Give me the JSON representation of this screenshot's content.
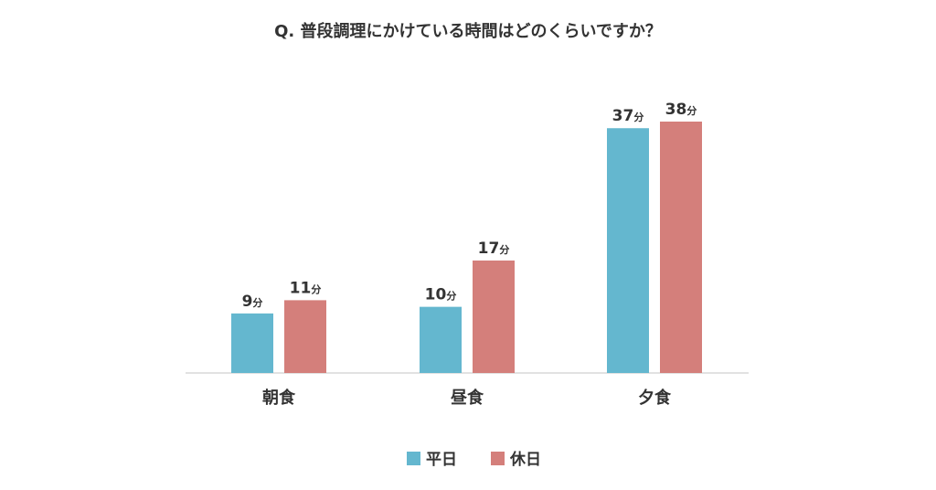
{
  "chart_data": {
    "type": "bar",
    "title": "Q. 普段調理にかけている時間はどのくらいですか？",
    "xlabel": "",
    "ylabel": "",
    "categories": [
      "朝食",
      "昼食",
      "夕食"
    ],
    "series": [
      {
        "name": "平日",
        "color": "#64b7cf",
        "values": [
          9,
          10,
          37
        ]
      },
      {
        "name": "休日",
        "color": "#d47f7b",
        "values": [
          11,
          17,
          38
        ]
      }
    ],
    "value_unit": "分",
    "ylim": [
      0,
      38
    ],
    "grid": false,
    "legend_position": "bottom-center"
  }
}
